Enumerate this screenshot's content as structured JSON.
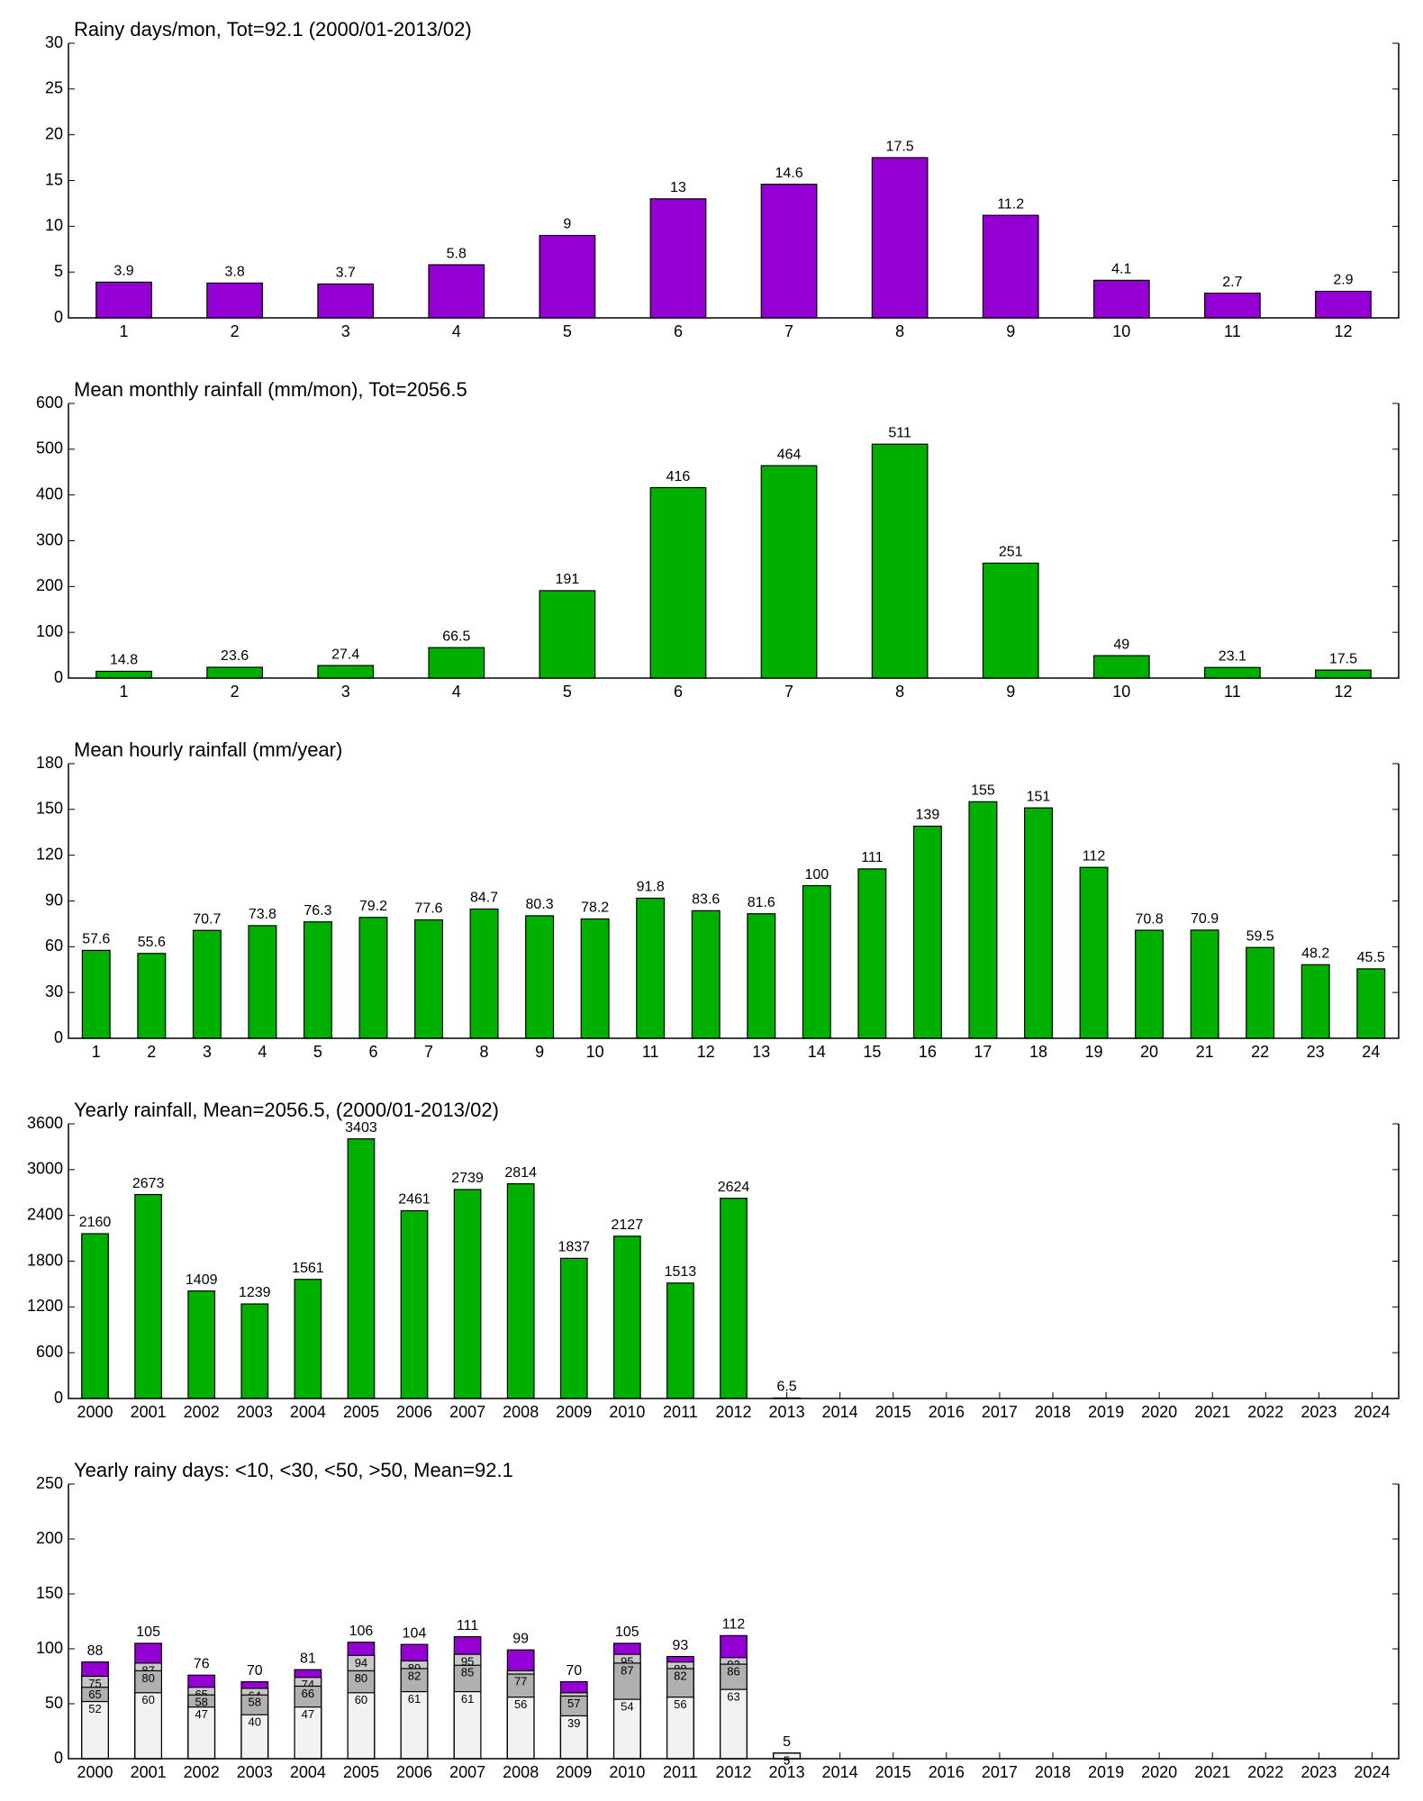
{
  "chart_data": [
    {
      "type": "bar",
      "title": "Rainy days/mon, Tot=92.1 (2000/01-2013/02)",
      "categories": [
        1,
        2,
        3,
        4,
        5,
        6,
        7,
        8,
        9,
        10,
        11,
        12
      ],
      "values": [
        3.9,
        3.8,
        3.7,
        5.8,
        9,
        13,
        14.6,
        17.5,
        11.2,
        4.1,
        2.7,
        2.9
      ],
      "color": "#9400d3",
      "ylim": [
        0,
        30
      ],
      "yticks": [
        0,
        5,
        10,
        15,
        20,
        25,
        30
      ]
    },
    {
      "type": "bar",
      "title": "Mean monthly rainfall (mm/mon), Tot=2056.5",
      "categories": [
        1,
        2,
        3,
        4,
        5,
        6,
        7,
        8,
        9,
        10,
        11,
        12
      ],
      "values": [
        14.8,
        23.6,
        27.4,
        66.5,
        191,
        416,
        464,
        511,
        251,
        49,
        23.1,
        17.5
      ],
      "color": "#00b000",
      "ylim": [
        0,
        600
      ],
      "yticks": [
        0,
        100,
        200,
        300,
        400,
        500,
        600
      ]
    },
    {
      "type": "bar",
      "title": "Mean hourly rainfall (mm/year)",
      "categories": [
        1,
        2,
        3,
        4,
        5,
        6,
        7,
        8,
        9,
        10,
        11,
        12,
        13,
        14,
        15,
        16,
        17,
        18,
        19,
        20,
        21,
        22,
        23,
        24
      ],
      "values": [
        57.6,
        55.6,
        70.7,
        73.8,
        76.3,
        79.2,
        77.6,
        84.7,
        80.3,
        78.2,
        91.8,
        83.6,
        81.6,
        100,
        111,
        139,
        155,
        151,
        112,
        70.8,
        70.9,
        59.5,
        48.2,
        45.5
      ],
      "color": "#00b000",
      "ylim": [
        0,
        180
      ],
      "yticks": [
        0,
        30,
        60,
        90,
        120,
        150,
        180
      ]
    },
    {
      "type": "bar",
      "title": "Yearly rainfall, Mean=2056.5, (2000/01-2013/02)",
      "categories": [
        2000,
        2001,
        2002,
        2003,
        2004,
        2005,
        2006,
        2007,
        2008,
        2009,
        2010,
        2011,
        2012,
        2013,
        2014,
        2015,
        2016,
        2017,
        2018,
        2019,
        2020,
        2021,
        2022,
        2023,
        2024
      ],
      "values": [
        2160,
        2673,
        1409,
        1239,
        1561,
        3403,
        2461,
        2739,
        2814,
        1837,
        2127,
        1513,
        2624,
        6.5,
        null,
        null,
        null,
        null,
        null,
        null,
        null,
        null,
        null,
        null,
        null
      ],
      "color": "#00b000",
      "ylim": [
        0,
        3600
      ],
      "yticks": [
        0,
        600,
        1200,
        1800,
        2400,
        3000,
        3600
      ]
    },
    {
      "type": "overlay-bar",
      "title": "Yearly rainy days: <10, <30, <50, >50, Mean=92.1",
      "categories": [
        2000,
        2001,
        2002,
        2003,
        2004,
        2005,
        2006,
        2007,
        2008,
        2009,
        2010,
        2011,
        2012,
        2013,
        2014,
        2015,
        2016,
        2017,
        2018,
        2019,
        2020,
        2021,
        2022,
        2023,
        2024
      ],
      "series": [
        {
          "color": "#9400d3",
          "values": [
            88,
            105,
            76,
            70,
            81,
            106,
            104,
            111,
            99,
            70,
            105,
            93,
            112,
            5,
            null,
            null,
            null,
            null,
            null,
            null,
            null,
            null,
            null,
            null,
            null
          ]
        },
        {
          "color": "#c8c8c8",
          "values": [
            75,
            87,
            65,
            64,
            74,
            94,
            89,
            95,
            80,
            60,
            95,
            88,
            92,
            5,
            null,
            null,
            null,
            null,
            null,
            null,
            null,
            null,
            null,
            null,
            null
          ]
        },
        {
          "color": "#b0b0b0",
          "values": [
            65,
            80,
            58,
            58,
            66,
            80,
            82,
            85,
            77,
            57,
            87,
            82,
            86,
            5,
            null,
            null,
            null,
            null,
            null,
            null,
            null,
            null,
            null,
            null,
            null
          ]
        },
        {
          "color": "#f2f2f2",
          "values": [
            52,
            60,
            47,
            40,
            47,
            60,
            61,
            61,
            56,
            39,
            54,
            56,
            63,
            5,
            null,
            null,
            null,
            null,
            null,
            null,
            null,
            null,
            null,
            null,
            null
          ]
        }
      ],
      "ylim": [
        0,
        250
      ],
      "yticks": [
        0,
        50,
        100,
        150,
        200,
        250
      ]
    }
  ]
}
